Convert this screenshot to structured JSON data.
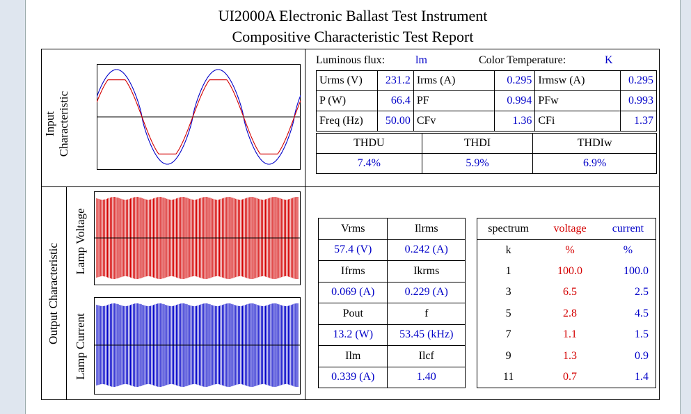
{
  "title_line1": "UI2000A Electronic Ballast Test Instrument",
  "title_line2": "Compositive Characteristic Test Report",
  "lum": {
    "label": "Luminous flux:",
    "unit": "lm",
    "ct_label": "Color Temperature:",
    "ct_unit": "K"
  },
  "input": {
    "label1": "Input",
    "label2": "Characteristic",
    "rows": [
      [
        "Urms (V)",
        "231.2",
        "Irms (A)",
        "0.295",
        "Irmsw (A)",
        "0.295"
      ],
      [
        "P    (W)",
        "66.4",
        "PF",
        "0.994",
        "PFw",
        "0.993"
      ],
      [
        "Freq (Hz)",
        "50.00",
        "CFv",
        "1.36",
        "CFi",
        "1.37"
      ]
    ],
    "thd_headers": [
      "THDU",
      "THDI",
      "THDIw"
    ],
    "thd_values": [
      "7.4%",
      "5.9%",
      "6.9%"
    ]
  },
  "output": {
    "label": "Output Characteristic",
    "lamp_voltage": "Lamp Voltage",
    "lamp_current": "Lamp Current",
    "params": [
      [
        "Vrms",
        "Ilrms"
      ],
      [
        "57.4 (V)",
        "0.242 (A)"
      ],
      [
        "Ifrms",
        "Ikrms"
      ],
      [
        "0.069 (A)",
        "0.229 (A)"
      ],
      [
        "Pout",
        "f"
      ],
      [
        "13.2 (W)",
        "53.45 (kHz)"
      ],
      [
        "Ilm",
        "Ilcf"
      ],
      [
        "0.339 (A)",
        "1.40"
      ]
    ],
    "spectrum_headers": [
      "spectrum",
      "voltage",
      "current"
    ],
    "spectrum_rows": [
      [
        "k",
        "%",
        "%"
      ],
      [
        "1",
        "100.0",
        "100.0"
      ],
      [
        "3",
        "6.5",
        "2.5"
      ],
      [
        "5",
        "2.8",
        "4.5"
      ],
      [
        "7",
        "1.1",
        "1.5"
      ],
      [
        "9",
        "1.3",
        "0.9"
      ],
      [
        "11",
        "0.7",
        "1.4"
      ]
    ]
  },
  "colors": {
    "voltage_wave": "#d40000",
    "current_wave": "#0000c8",
    "value_blue": "#0000c8",
    "value_red": "#d40000"
  }
}
